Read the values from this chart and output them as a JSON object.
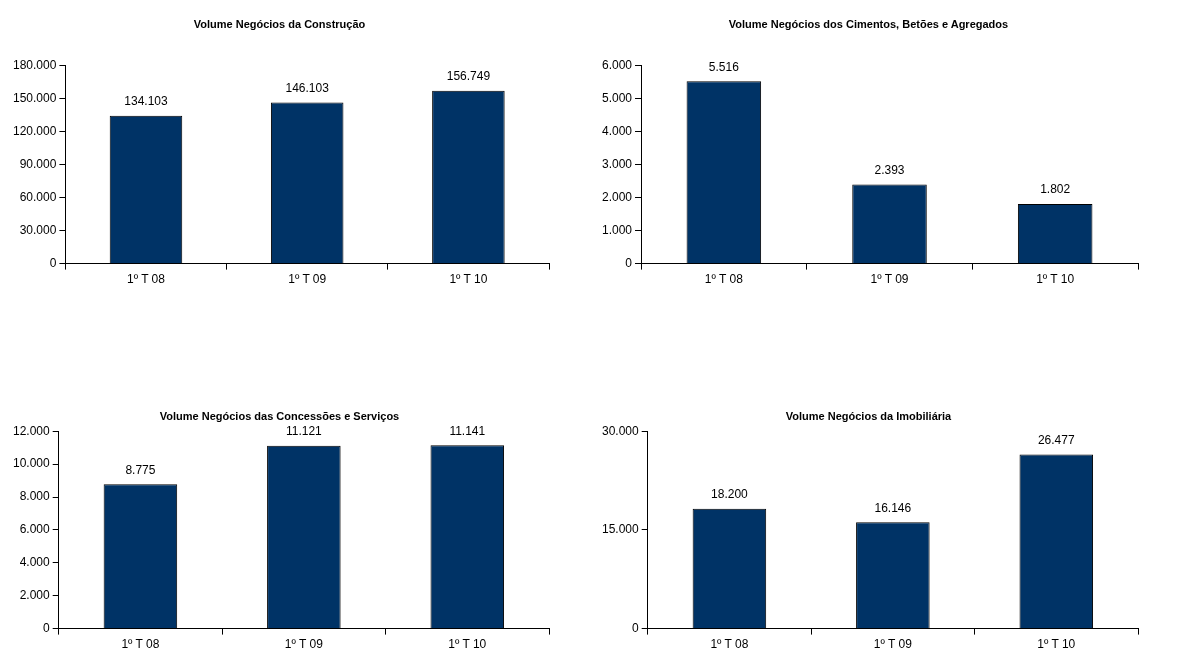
{
  "chart_data": [
    {
      "type": "bar",
      "title": "Volume Negócios da Construção",
      "categories": [
        "1º T 08",
        "1º T 09",
        "1º T 10"
      ],
      "values": [
        134103,
        146103,
        156749
      ],
      "value_labels": [
        "134.103",
        "146.103",
        "156.749"
      ],
      "color": "#003366",
      "ylim": [
        0,
        180000
      ],
      "yticks": [
        {
          "value": 0,
          "label": "0"
        },
        {
          "value": 30000,
          "label": "30.000"
        },
        {
          "value": 60000,
          "label": "60.000"
        },
        {
          "value": 90000,
          "label": "90.000"
        },
        {
          "value": 120000,
          "label": "120.000"
        },
        {
          "value": 150000,
          "label": "150.000"
        },
        {
          "value": 180000,
          "label": "180.000"
        }
      ],
      "grid": false,
      "legend": false
    },
    {
      "type": "bar",
      "title": "Volume Negócios dos Cimentos, Betões e Agregados",
      "categories": [
        "1º T 08",
        "1º T 09",
        "1º T 10"
      ],
      "values": [
        5516,
        2393,
        1802
      ],
      "value_labels": [
        "5.516",
        "2.393",
        "1.802"
      ],
      "color": "#003366",
      "ylim": [
        0,
        6000
      ],
      "yticks": [
        {
          "value": 0,
          "label": "0"
        },
        {
          "value": 1000,
          "label": "1.000"
        },
        {
          "value": 2000,
          "label": "2.000"
        },
        {
          "value": 3000,
          "label": "3.000"
        },
        {
          "value": 4000,
          "label": "4.000"
        },
        {
          "value": 5000,
          "label": "5.000"
        },
        {
          "value": 6000,
          "label": "6.000"
        }
      ],
      "grid": false,
      "legend": false
    },
    {
      "type": "bar",
      "title": "Volume Negócios das Concessões e Serviços",
      "categories": [
        "1º T 08",
        "1º T 09",
        "1º T 10"
      ],
      "values": [
        8775,
        11121,
        11141
      ],
      "value_labels": [
        "8.775",
        "11.121",
        "11.141"
      ],
      "color": "#003366",
      "ylim": [
        0,
        12000
      ],
      "yticks": [
        {
          "value": 0,
          "label": "0"
        },
        {
          "value": 2000,
          "label": "2.000"
        },
        {
          "value": 4000,
          "label": "4.000"
        },
        {
          "value": 6000,
          "label": "6.000"
        },
        {
          "value": 8000,
          "label": "8.000"
        },
        {
          "value": 10000,
          "label": "10.000"
        },
        {
          "value": 12000,
          "label": "12.000"
        }
      ],
      "grid": false,
      "legend": false
    },
    {
      "type": "bar",
      "title": "Volume Negócios da Imobiliária",
      "categories": [
        "1º T 08",
        "1º T 09",
        "1º T 10"
      ],
      "values": [
        18200,
        16146,
        26477
      ],
      "value_labels": [
        "18.200",
        "16.146",
        "26.477"
      ],
      "color": "#003366",
      "ylim": [
        0,
        30000
      ],
      "yticks": [
        {
          "value": 0,
          "label": "0"
        },
        {
          "value": 15000,
          "label": "15.000"
        },
        {
          "value": 30000,
          "label": "30.000"
        }
      ],
      "grid": false,
      "legend": false
    }
  ]
}
